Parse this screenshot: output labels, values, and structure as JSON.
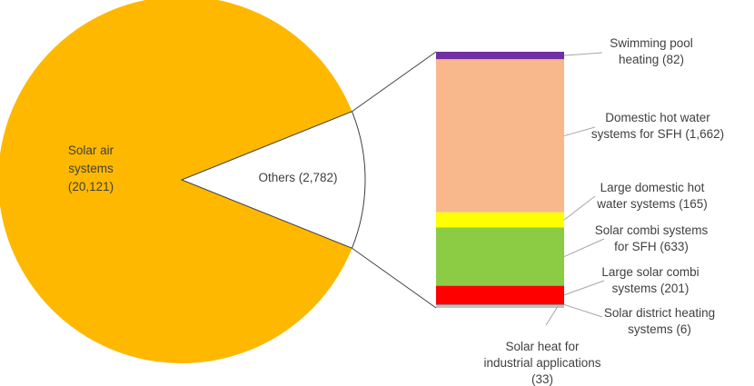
{
  "chart_data": [
    {
      "type": "pie",
      "categories": [
        "Solar air systems",
        "Others"
      ],
      "values": [
        20121,
        2782
      ],
      "labels": [
        {
          "lines": [
            "Solar air",
            "systems",
            "(20,121)"
          ]
        },
        {
          "lines": [
            "Others (2,782)"
          ]
        }
      ],
      "colors": [
        "#FFB800",
        "#FFFFFF"
      ]
    },
    {
      "type": "bar",
      "stacked": true,
      "categories": [
        "Swimming pool heating",
        "Domestic hot water systems for SFH",
        "Large domestic hot water systems",
        "Solar combi systems for SFH",
        "Large solar combi systems",
        "Solar district heating systems",
        "Solar heat for industrial applications"
      ],
      "values": [
        82,
        1662,
        165,
        633,
        201,
        6,
        33
      ],
      "colors": [
        "#7030A0",
        "#F8B88B",
        "#FFFF00",
        "#8CCB44",
        "#FF0000",
        "#595959",
        "#BFBFBF"
      ],
      "labels": [
        {
          "lines": [
            "Swimming pool",
            "heating (82)"
          ]
        },
        {
          "lines": [
            "Domestic hot water",
            "systems for SFH (1,662)"
          ]
        },
        {
          "lines": [
            "Large domestic hot",
            "water systems (165)"
          ]
        },
        {
          "lines": [
            "Solar combi systems",
            "for SFH (633)"
          ]
        },
        {
          "lines": [
            "Large solar combi",
            "systems (201)"
          ]
        },
        {
          "lines": [
            "Solar district heating",
            "systems (6)"
          ]
        },
        {
          "lines": [
            "Solar heat for",
            "industrial applications",
            "(33)"
          ]
        }
      ]
    }
  ]
}
